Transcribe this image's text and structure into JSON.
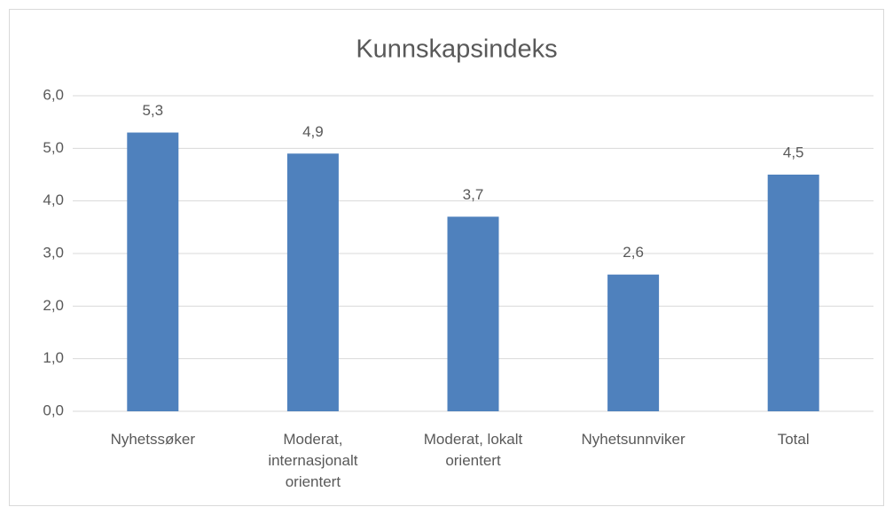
{
  "chart_data": {
    "type": "bar",
    "title": "Kunnskapsindeks",
    "categories": [
      "Nyhetssøker",
      "Moderat, internasjonalt orientert",
      "Moderat, lokalt orientert",
      "Nyhetsunnviker",
      "Total"
    ],
    "values": [
      5.3,
      4.9,
      3.7,
      2.6,
      4.5
    ],
    "value_labels": [
      "5,3",
      "4,9",
      "3,7",
      "2,6",
      "4,5"
    ],
    "color": "#4f81bd",
    "ylim": [
      0,
      6
    ],
    "yticks": [
      {
        "value": 0,
        "label": "0,0"
      },
      {
        "value": 1,
        "label": "1,0"
      },
      {
        "value": 2,
        "label": "2,0"
      },
      {
        "value": 3,
        "label": "3,0"
      },
      {
        "value": 4,
        "label": "4,0"
      },
      {
        "value": 5,
        "label": "5,0"
      },
      {
        "value": 6,
        "label": "6,0"
      }
    ],
    "grid": true
  }
}
